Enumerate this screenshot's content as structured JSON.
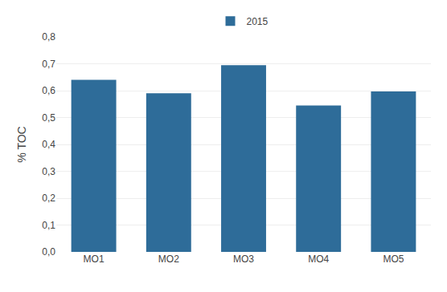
{
  "chart_data": {
    "type": "bar",
    "categories": [
      "MO1",
      "MO2",
      "MO3",
      "MO4",
      "MO5"
    ],
    "values": [
      0.64,
      0.59,
      0.695,
      0.545,
      0.597
    ],
    "color": "#2E6C99",
    "name": "2015",
    "ylabel": "% TOC",
    "ylim": [
      0,
      0.8
    ],
    "yticks": [
      {
        "value": 0.0,
        "label": "0,0"
      },
      {
        "value": 0.1,
        "label": "0,1"
      },
      {
        "value": 0.2,
        "label": "0,2"
      },
      {
        "value": 0.3,
        "label": "0,3"
      },
      {
        "value": 0.4,
        "label": "0,4"
      },
      {
        "value": 0.5,
        "label": "0,5"
      },
      {
        "value": 0.6,
        "label": "0,6"
      },
      {
        "value": 0.7,
        "label": "0,7"
      },
      {
        "value": 0.8,
        "label": "0,8"
      }
    ],
    "grid": true,
    "legend": "top"
  }
}
